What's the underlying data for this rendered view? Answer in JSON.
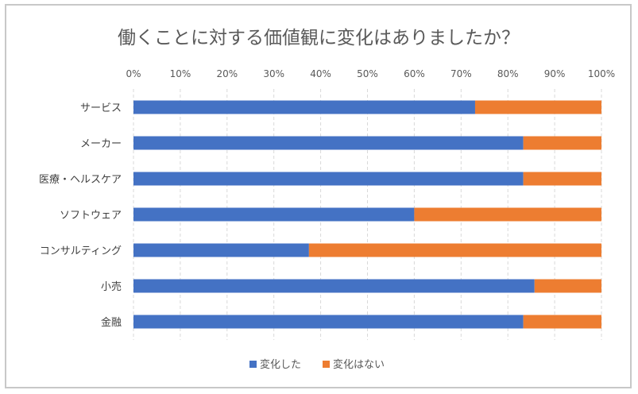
{
  "chart_data": {
    "type": "bar",
    "orientation": "horizontal",
    "stacked": "percent",
    "title": "働くことに対する価値観に変化はありましたか？",
    "categories": [
      "サービス",
      "メーカー",
      "医療・ヘルスケア",
      "ソフトウェア",
      "コンサルティング",
      "小売",
      "金融"
    ],
    "series": [
      {
        "name": "変化した",
        "color": "#4472c4",
        "values": [
          73,
          83.3,
          83.3,
          60,
          37.5,
          85.7,
          83.3
        ]
      },
      {
        "name": "変化はない",
        "color": "#ed7d31",
        "values": [
          27,
          16.7,
          16.7,
          40,
          62.5,
          14.3,
          16.7
        ]
      }
    ],
    "x_ticks": [
      "0%",
      "10%",
      "20%",
      "30%",
      "40%",
      "50%",
      "60%",
      "70%",
      "80%",
      "90%",
      "100%"
    ],
    "xlim": [
      0,
      100
    ],
    "x_axis_position": "top",
    "grid": "vertical-dashed",
    "legend_position": "bottom"
  }
}
